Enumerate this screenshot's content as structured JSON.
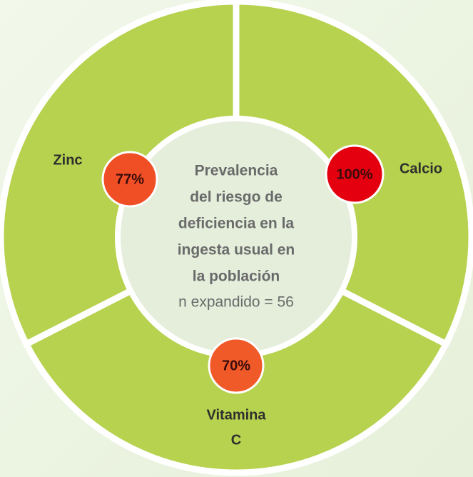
{
  "center": {
    "title_lines": [
      "Prevalencia",
      "del riesgo de",
      "deficiencia en la",
      "ingesta usual en",
      "la población"
    ],
    "note": "n expandido = 56"
  },
  "segments": [
    {
      "label_lines": [
        "Calcio"
      ],
      "badge": "100%"
    },
    {
      "label_lines": [
        "Vitamina",
        "C"
      ],
      "badge": "70%"
    },
    {
      "label_lines": [
        "Zinc"
      ],
      "badge": "77%"
    }
  ]
}
